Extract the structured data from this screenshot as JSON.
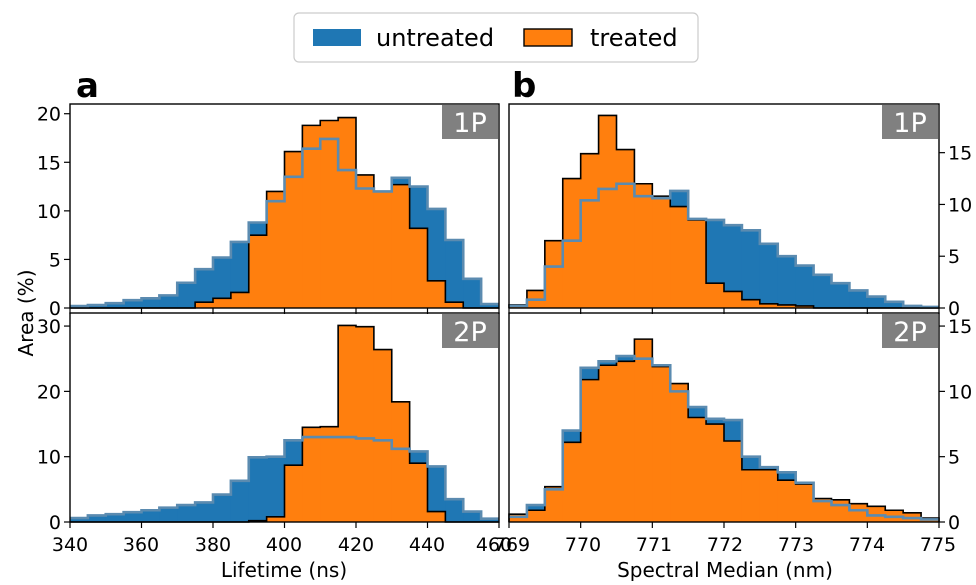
{
  "legend": {
    "placement": "top-center",
    "entries": [
      {
        "label": "untreated",
        "color": "#1f77b4"
      },
      {
        "label": "treated",
        "color": "#ff7f0e"
      }
    ]
  },
  "shared_ylabel": "Area (%)",
  "colors": {
    "untreated": "#1f77b4",
    "treated": "#ff7f0e",
    "treated_edge": "#000000",
    "overlay_line": "#5b8bb0",
    "tag_bg": "#808080",
    "tag_text": "#ffffff"
  },
  "panels": {
    "a": {
      "label": "a",
      "xlabel": "Lifetime (ns)",
      "xticks": [
        "340",
        "360",
        "380",
        "400",
        "420",
        "440",
        "460"
      ]
    },
    "b": {
      "label": "b",
      "xlabel": "Spectral Median (nm)",
      "xticks": [
        "769",
        "770",
        "771",
        "772",
        "773",
        "774",
        "775"
      ]
    }
  },
  "chart_data": [
    {
      "id": "a-1P",
      "type": "histogram",
      "tag": "1P",
      "xlabel": "",
      "ylabel": "Area (%)",
      "xlim": [
        340,
        460
      ],
      "ylim": [
        0,
        21
      ],
      "yticks": [
        0,
        5,
        10,
        15,
        20
      ],
      "yaxis_side": "left",
      "bin_edges": [
        340,
        345,
        350,
        355,
        360,
        365,
        370,
        375,
        380,
        385,
        390,
        395,
        400,
        405,
        410,
        415,
        420,
        425,
        430,
        435,
        440,
        445,
        450,
        455,
        460
      ],
      "series": [
        {
          "name": "untreated",
          "values": [
            0.2,
            0.3,
            0.5,
            0.8,
            1.0,
            1.3,
            2.6,
            4.0,
            5.2,
            6.8,
            8.8,
            11.0,
            13.5,
            16.4,
            17.4,
            14.2,
            12.3,
            12.0,
            13.4,
            12.5,
            10.2,
            7.0,
            3.0,
            0.4
          ]
        },
        {
          "name": "treated",
          "values": [
            0.0,
            0.0,
            0.0,
            0.0,
            0.0,
            0.0,
            0.0,
            0.6,
            1.0,
            1.6,
            7.5,
            12.0,
            16.1,
            18.8,
            19.3,
            19.6,
            13.7,
            12.0,
            12.7,
            8.2,
            2.8,
            0.6,
            0.0,
            0.0
          ]
        }
      ]
    },
    {
      "id": "a-2P",
      "type": "histogram",
      "tag": "2P",
      "xlabel": "Lifetime (ns)",
      "ylabel": "Area (%)",
      "xlim": [
        340,
        460
      ],
      "ylim": [
        0,
        32
      ],
      "yticks": [
        0,
        10,
        20,
        30
      ],
      "yaxis_side": "left",
      "bin_edges": [
        340,
        345,
        350,
        355,
        360,
        365,
        370,
        375,
        380,
        385,
        390,
        395,
        400,
        405,
        410,
        415,
        420,
        425,
        430,
        435,
        440,
        445,
        450,
        455,
        460
      ],
      "series": [
        {
          "name": "untreated",
          "values": [
            0.6,
            1.0,
            1.2,
            1.5,
            1.8,
            2.2,
            2.6,
            3.0,
            4.2,
            6.3,
            9.9,
            10.0,
            12.5,
            13.0,
            13.0,
            13.0,
            12.8,
            12.5,
            11.2,
            10.8,
            8.5,
            3.5,
            1.6,
            0.5
          ]
        },
        {
          "name": "treated",
          "values": [
            0.0,
            0.0,
            0.0,
            0.0,
            0.0,
            0.0,
            0.0,
            0.0,
            0.0,
            0.0,
            0.2,
            0.8,
            8.7,
            14.5,
            14.6,
            30.1,
            29.9,
            26.4,
            18.4,
            9.0,
            1.6,
            0.0,
            0.0,
            0.0
          ]
        }
      ]
    },
    {
      "id": "b-1P",
      "type": "histogram",
      "tag": "1P",
      "xlabel": "",
      "ylabel": "",
      "xlim": [
        769,
        775
      ],
      "ylim": [
        0,
        19.7
      ],
      "yticks": [
        0,
        5,
        10,
        15
      ],
      "yaxis_side": "right",
      "bin_edges": [
        769,
        769.25,
        769.5,
        769.75,
        770,
        770.25,
        770.5,
        770.75,
        771,
        771.25,
        771.5,
        771.75,
        772,
        772.25,
        772.5,
        772.75,
        773,
        773.25,
        773.5,
        773.75,
        774,
        774.25,
        774.5,
        774.75,
        775
      ],
      "series": [
        {
          "name": "untreated",
          "values": [
            0.2,
            0.8,
            4.0,
            6.5,
            10.4,
            11.5,
            12.0,
            10.8,
            10.6,
            11.3,
            8.6,
            8.5,
            8.0,
            7.5,
            6.2,
            5.0,
            4.1,
            3.2,
            2.4,
            1.7,
            1.1,
            0.6,
            0.2,
            0.1
          ]
        },
        {
          "name": "treated",
          "values": [
            0.3,
            1.7,
            6.5,
            12.5,
            14.9,
            18.6,
            15.3,
            12.0,
            10.8,
            9.8,
            8.5,
            2.4,
            1.6,
            0.8,
            0.4,
            0.3,
            0.2,
            0.0,
            0.0,
            0.0,
            0.0,
            0.0,
            0.0,
            0.0
          ]
        }
      ]
    },
    {
      "id": "b-2P",
      "type": "histogram",
      "tag": "2P",
      "xlabel": "Spectral Median (nm)",
      "ylabel": "",
      "xlim": [
        769,
        775
      ],
      "ylim": [
        0,
        16
      ],
      "yticks": [
        0,
        5,
        10,
        15
      ],
      "yaxis_side": "right",
      "bin_edges": [
        769,
        769.25,
        769.5,
        769.75,
        770,
        770.25,
        770.5,
        770.75,
        771,
        771.25,
        771.5,
        771.75,
        772,
        772.25,
        772.5,
        772.75,
        773,
        773.25,
        773.5,
        773.75,
        774,
        774.25,
        774.5,
        774.75,
        775
      ],
      "series": [
        {
          "name": "untreated",
          "values": [
            0.4,
            1.3,
            2.5,
            7.0,
            11.8,
            12.3,
            12.7,
            12.5,
            12.0,
            10.0,
            8.8,
            7.9,
            7.8,
            5.0,
            4.2,
            3.8,
            3.0,
            1.6,
            1.3,
            0.9,
            0.5,
            0.4,
            0.3,
            0.2
          ]
        },
        {
          "name": "treated",
          "values": [
            0.6,
            0.9,
            2.7,
            6.1,
            10.9,
            12.0,
            12.3,
            14.0,
            11.9,
            10.6,
            8.0,
            7.5,
            6.2,
            4.0,
            4.0,
            3.2,
            2.9,
            1.8,
            1.7,
            1.4,
            1.2,
            0.9,
            0.7,
            0.3
          ]
        }
      ]
    }
  ]
}
